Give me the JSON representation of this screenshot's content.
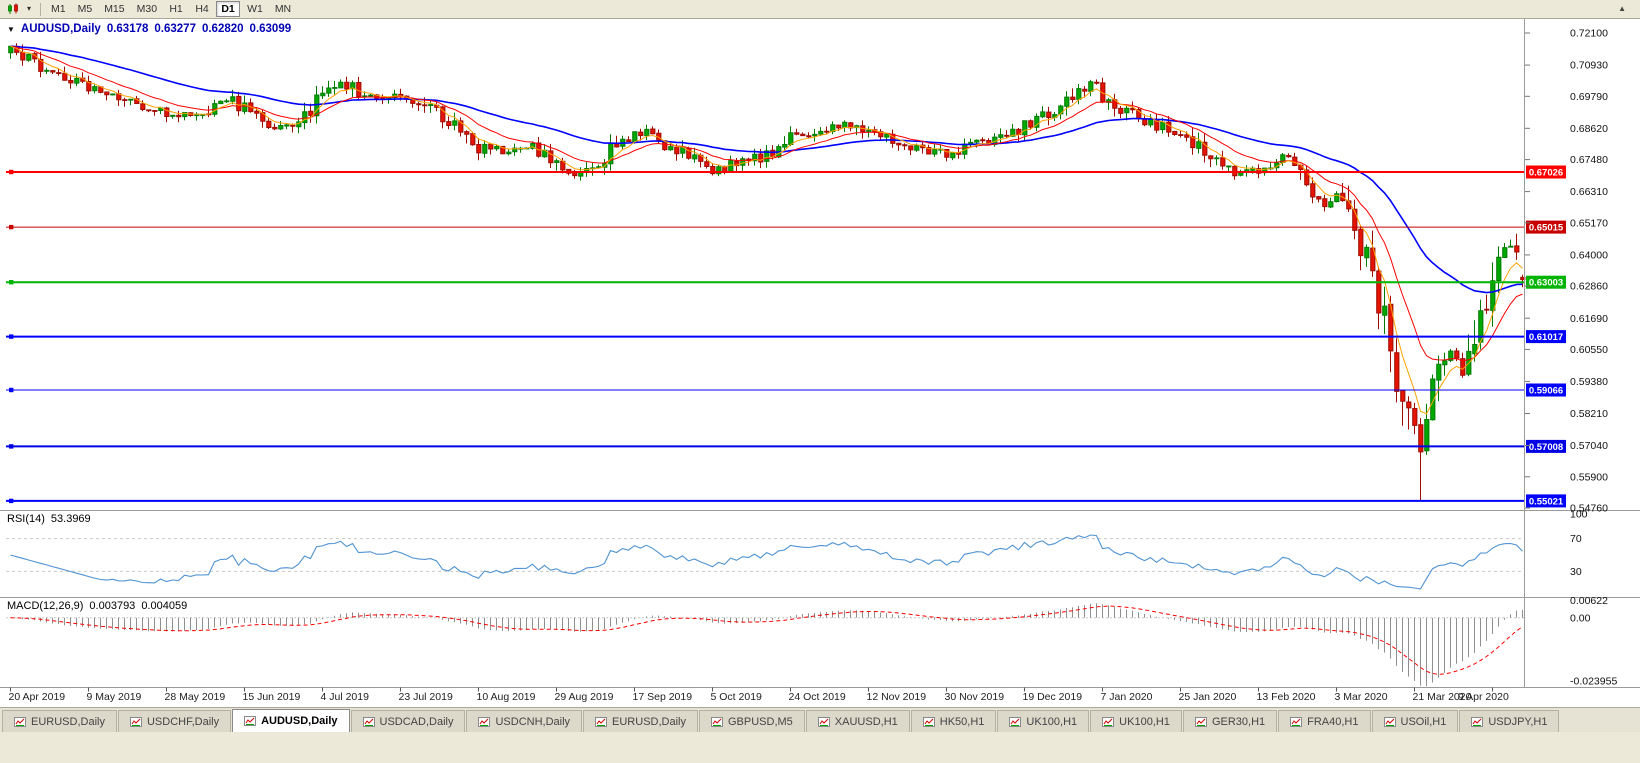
{
  "toolbar": {
    "timeframes": [
      "M1",
      "M5",
      "M15",
      "M30",
      "H1",
      "H4",
      "D1",
      "W1",
      "MN"
    ],
    "active_timeframe": "D1"
  },
  "chart_header": {
    "symbol": "AUDUSD,Daily",
    "open": "0.63178",
    "high": "0.63277",
    "low": "0.62820",
    "close": "0.63099"
  },
  "colors": {
    "up": "#00A800",
    "up_stroke": "#007B00",
    "down": "#E51400",
    "down_stroke": "#9E0B00",
    "ma_fast": "#FFA200",
    "ma_mid": "#FF0000",
    "ma_slow": "#0000FF",
    "rsi": "#4F93D2",
    "macd_hist": "#8F8F8F",
    "macd_signal": "#FF0000",
    "header_text": "#0000B4"
  },
  "chart_data": {
    "type": "candlestick",
    "symbol": "AUDUSD",
    "period": "Daily",
    "bars": 253,
    "y_range": [
      0.5476,
      0.721
    ],
    "y_ticks": [
      "0.72100",
      "0.70930",
      "0.69790",
      "0.68620",
      "0.67480",
      "0.66310",
      "0.65170",
      "0.64000",
      "0.62860",
      "0.61690",
      "0.60550",
      "0.59380",
      "0.58210",
      "0.57040",
      "0.55900",
      "0.54760"
    ],
    "x_labels": [
      "20 Apr 2019",
      "9 May 2019",
      "28 May 2019",
      "15 Jun 2019",
      "4 Jul 2019",
      "23 Jul 2019",
      "10 Aug 2019",
      "29 Aug 2019",
      "17 Sep 2019",
      "5 Oct 2019",
      "24 Oct 2019",
      "12 Nov 2019",
      "30 Nov 2019",
      "19 Dec 2019",
      "7 Jan 2020",
      "25 Jan 2020",
      "13 Feb 2020",
      "3 Mar 2020",
      "21 Mar 2020",
      "9 Apr 2020"
    ],
    "x_label_interval": 13,
    "last_ohlc": {
      "open": 0.63178,
      "high": 0.63277,
      "low": 0.6282,
      "close": 0.63099
    },
    "trend_anchors": [
      [
        0,
        0.7145
      ],
      [
        4,
        0.71
      ],
      [
        8,
        0.7062
      ],
      [
        13,
        0.7015
      ],
      [
        17,
        0.6988
      ],
      [
        22,
        0.6938
      ],
      [
        26,
        0.692
      ],
      [
        31,
        0.6906
      ],
      [
        35,
        0.6976
      ],
      [
        39,
        0.6936
      ],
      [
        44,
        0.6866
      ],
      [
        48,
        0.6896
      ],
      [
        52,
        0.6986
      ],
      [
        55,
        0.7032
      ],
      [
        59,
        0.6976
      ],
      [
        65,
        0.6986
      ],
      [
        70,
        0.694
      ],
      [
        74,
        0.6882
      ],
      [
        78,
        0.6794
      ],
      [
        83,
        0.6772
      ],
      [
        87,
        0.6792
      ],
      [
        91,
        0.6726
      ],
      [
        94,
        0.6702
      ],
      [
        98,
        0.6736
      ],
      [
        104,
        0.6858
      ],
      [
        108,
        0.6812
      ],
      [
        113,
        0.6772
      ],
      [
        117,
        0.6704
      ],
      [
        121,
        0.6744
      ],
      [
        126,
        0.6762
      ],
      [
        130,
        0.6836
      ],
      [
        135,
        0.6852
      ],
      [
        139,
        0.688
      ],
      [
        143,
        0.6842
      ],
      [
        148,
        0.6812
      ],
      [
        152,
        0.6786
      ],
      [
        156,
        0.6766
      ],
      [
        161,
        0.68
      ],
      [
        165,
        0.6826
      ],
      [
        169,
        0.687
      ],
      [
        174,
        0.6926
      ],
      [
        178,
        0.6996
      ],
      [
        180,
        0.703
      ],
      [
        182,
        0.6986
      ],
      [
        186,
        0.6926
      ],
      [
        191,
        0.6872
      ],
      [
        195,
        0.684
      ],
      [
        199,
        0.6772
      ],
      [
        204,
        0.67
      ],
      [
        208,
        0.6716
      ],
      [
        212,
        0.676
      ],
      [
        216,
        0.6656
      ],
      [
        219,
        0.659
      ],
      [
        221,
        0.6616
      ],
      [
        223,
        0.658
      ],
      [
        225,
        0.6452
      ],
      [
        227,
        0.6312
      ],
      [
        229,
        0.6152
      ],
      [
        231,
        0.5982
      ],
      [
        233,
        0.582
      ],
      [
        235,
        0.5688
      ],
      [
        236,
        0.5812
      ],
      [
        238,
        0.5962
      ],
      [
        240,
        0.6052
      ],
      [
        242,
        0.5965
      ],
      [
        244,
        0.6092
      ],
      [
        247,
        0.6362
      ],
      [
        249,
        0.6442
      ],
      [
        251,
        0.6372
      ],
      [
        252,
        0.631
      ]
    ],
    "spike_low": {
      "bar": 235,
      "price": 0.5505
    },
    "levels": [
      {
        "label": "0.67026",
        "color": "#FF0000",
        "width": 2
      },
      {
        "label": "0.65015",
        "color": "#C80000",
        "width": 1
      },
      {
        "label": "0.63003",
        "color": "#00B400",
        "width": 2
      },
      {
        "label": "0.61017",
        "color": "#0000FF",
        "width": 2
      },
      {
        "label": "0.59066",
        "color": "#0000FF",
        "width": 1
      },
      {
        "label": "0.57008",
        "color": "#0000E6",
        "width": 2
      },
      {
        "label": "0.55021",
        "color": "#0000FF",
        "width": 2
      }
    ],
    "indicators": {
      "rsi": {
        "title": "RSI(14)",
        "value": "53.3969",
        "period": 14,
        "scale": [
          "100",
          "70",
          "30"
        ],
        "levels": [
          70,
          30
        ]
      },
      "macd": {
        "title": "MACD(12,26,9)",
        "macd_value": "0.003793",
        "signal_value": "0.004059",
        "scale_labels": [
          "0.00622",
          "0.00",
          "-0.023955"
        ],
        "scale_values": [
          0.00622,
          0,
          -0.023955
        ]
      }
    }
  },
  "tabbar": {
    "tabs": [
      {
        "label": "EURUSD,Daily"
      },
      {
        "label": "USDCHF,Daily"
      },
      {
        "label": "AUDUSD,Daily",
        "active": true
      },
      {
        "label": "USDCAD,Daily"
      },
      {
        "label": "USDCNH,Daily"
      },
      {
        "label": "EURUSD,Daily"
      },
      {
        "label": "GBPUSD,M5"
      },
      {
        "label": "XAUUSD,H1"
      },
      {
        "label": "HK50,H1"
      },
      {
        "label": "UK100,H1"
      },
      {
        "label": "UK100,H1"
      },
      {
        "label": "GER30,H1"
      },
      {
        "label": "FRA40,H1"
      },
      {
        "label": "USOil,H1"
      },
      {
        "label": "USDJPY,H1"
      }
    ]
  }
}
